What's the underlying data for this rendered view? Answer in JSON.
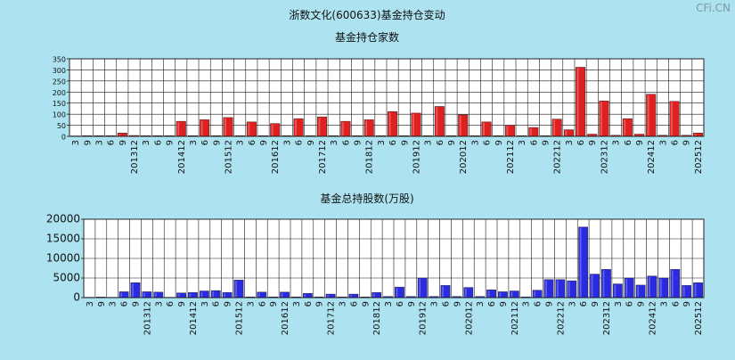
{
  "header": {
    "title": "浙数文化(600633)基金持仓变动",
    "watermark": "CFi.CN"
  },
  "colors": {
    "background": "#ade3f0",
    "red_bar": "#e02020",
    "blue_bar": "#2a2ae0",
    "grid": "#1a1a1a"
  },
  "chart_data": [
    {
      "type": "bar",
      "title": "基金持仓家数",
      "grid": true,
      "ylim": [
        0,
        350
      ],
      "yticks": [
        0,
        50,
        100,
        150,
        200,
        250,
        300,
        350
      ],
      "ytick_labels": [
        "0",
        "50",
        "100",
        "150",
        "200",
        "250",
        "300",
        "350"
      ],
      "categories": [
        "3",
        "9",
        "3",
        "6",
        "9",
        "201312",
        "3",
        "6",
        "9",
        "201412",
        "3",
        "6",
        "9",
        "201512",
        "3",
        "6",
        "9",
        "201612",
        "3",
        "6",
        "9",
        "201712",
        "3",
        "6",
        "9",
        "201812",
        "3",
        "6",
        "9",
        "201912",
        "3",
        "6",
        "9",
        "202012",
        "3",
        "6",
        "9",
        "202112",
        "3",
        "6",
        "9",
        "202212",
        "3",
        "6",
        "9",
        "202312",
        "3",
        "6",
        "9",
        "202412",
        "3",
        "6",
        "9",
        "202512"
      ],
      "values": [
        2,
        3,
        3,
        3,
        15,
        4,
        3,
        3,
        3,
        68,
        3,
        75,
        3,
        85,
        3,
        65,
        3,
        58,
        3,
        80,
        3,
        88,
        3,
        68,
        3,
        75,
        3,
        112,
        3,
        105,
        3,
        135,
        3,
        97,
        3,
        65,
        3,
        50,
        3,
        40,
        3,
        78,
        30,
        312,
        10,
        160,
        5,
        80,
        10,
        190,
        5,
        158,
        5,
        15
      ]
    },
    {
      "type": "bar",
      "title": "基金总持股数(万股)",
      "grid": true,
      "ylim": [
        0,
        20000
      ],
      "yticks": [
        0,
        5000,
        10000,
        15000,
        20000
      ],
      "ytick_labels": [
        "0",
        "5000",
        "10000",
        "15000",
        "20000"
      ],
      "categories": [
        "3",
        "9",
        "3",
        "6",
        "9",
        "201312",
        "3",
        "6",
        "9",
        "201412",
        "3",
        "6",
        "9",
        "201512",
        "3",
        "6",
        "9",
        "201612",
        "3",
        "6",
        "9",
        "201712",
        "3",
        "6",
        "9",
        "201812",
        "3",
        "6",
        "9",
        "201912",
        "3",
        "6",
        "9",
        "202012",
        "3",
        "6",
        "9",
        "202112",
        "3",
        "6",
        "9",
        "202212",
        "3",
        "6",
        "9",
        "202312",
        "3",
        "6",
        "9",
        "202412",
        "3",
        "6",
        "9",
        "202512"
      ],
      "values": [
        100,
        150,
        100,
        1500,
        3800,
        1500,
        1400,
        100,
        1200,
        1300,
        1700,
        1800,
        1300,
        4500,
        200,
        1400,
        200,
        1400,
        200,
        1100,
        200,
        900,
        200,
        900,
        200,
        1300,
        300,
        2700,
        300,
        5000,
        300,
        3100,
        300,
        2600,
        300,
        2000,
        1500,
        1700,
        200,
        1900,
        4600,
        4600,
        4300,
        18000,
        6000,
        7200,
        3500,
        5000,
        3200,
        5500,
        5000,
        7200,
        3100,
        3800
      ]
    }
  ]
}
